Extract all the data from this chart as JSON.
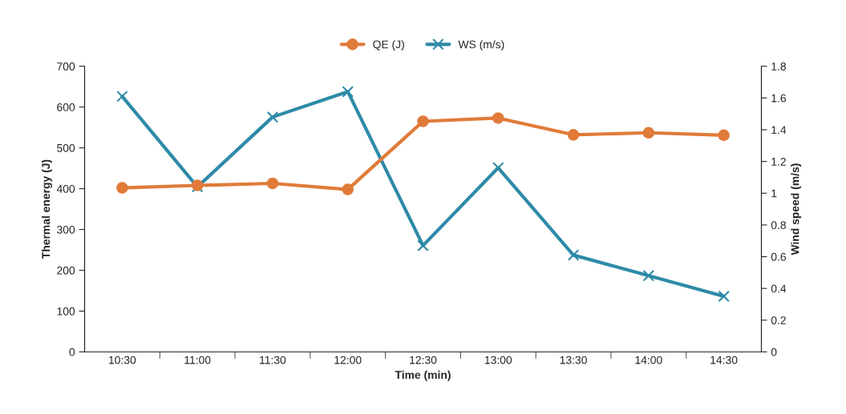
{
  "chart_data": {
    "type": "line",
    "xlabel": "Time (min)",
    "ylabel": "Thermal energy (J)",
    "y2label": "Wind speed (m/s)",
    "categories": [
      "10:30",
      "11:00",
      "11:30",
      "12:00",
      "12:30",
      "13:00",
      "13:30",
      "14:00",
      "14:30"
    ],
    "series": [
      {
        "name": "QE (J)",
        "color": "#e07b39",
        "marker": "circle",
        "values": [
          402,
          408,
          413,
          398,
          565,
          573,
          532,
          537,
          531
        ]
      },
      {
        "name": "WS (m/s)",
        "color": "#2e8aa8",
        "marker": "cross",
        "axis": "y2",
        "values": [
          1.61,
          1.04,
          1.48,
          1.64,
          0.67,
          1.16,
          0.61,
          0.48,
          0.35
        ]
      }
    ],
    "ylim": [
      0,
      700
    ],
    "yticks": [
      0,
      100,
      200,
      300,
      400,
      500,
      600,
      700
    ],
    "y2lim": [
      0,
      1.8
    ],
    "y2ticks": [
      0,
      0.2,
      0.4,
      0.6,
      0.8,
      1,
      1.2,
      1.4,
      1.6,
      1.8
    ],
    "grid": false,
    "legend": "top"
  }
}
